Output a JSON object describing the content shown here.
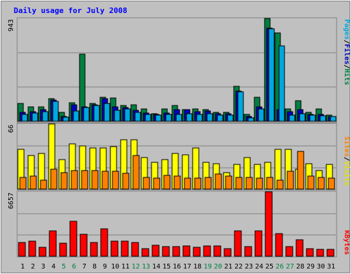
{
  "chart_data": [
    {
      "type": "bar",
      "title": "Daily usage for July 2008",
      "y_max_label": "943",
      "legend": [
        {
          "label": "Pages",
          "color": "#00a8e0"
        },
        {
          "label": "Files",
          "color": "#0000c0"
        },
        {
          "label": "Hits",
          "color": "#008040"
        }
      ],
      "separator": "/",
      "categories": [
        "1",
        "2",
        "3",
        "4",
        "5",
        "6",
        "7",
        "8",
        "9",
        "10",
        "11",
        "12",
        "13",
        "14",
        "15",
        "16",
        "17",
        "18",
        "19",
        "20",
        "21",
        "22",
        "23",
        "24",
        "25",
        "26",
        "27",
        "28",
        "29",
        "30",
        "31"
      ],
      "weekend_days": [
        "5",
        "6",
        "12",
        "13",
        "19",
        "20",
        "26",
        "27"
      ],
      "ylim": [
        0,
        943
      ],
      "series": [
        {
          "name": "Hits",
          "color": "#008040",
          "values": [
            166,
            134,
            134,
            206,
            83,
            170,
            615,
            161,
            219,
            214,
            143,
            148,
            111,
            71,
            114,
            143,
            110,
            111,
            107,
            80,
            80,
            322,
            62,
            219,
            943,
            814,
            111,
            191,
            81,
            116,
            58
          ]
        },
        {
          "name": "Files",
          "color": "#0000c0",
          "values": [
            80,
            90,
            110,
            196,
            47,
            148,
            134,
            152,
            206,
            134,
            125,
            98,
            75,
            65,
            75,
            104,
            104,
            86,
            96,
            72,
            70,
            275,
            45,
            134,
            856,
            107,
            85,
            107,
            65,
            62,
            43
          ]
        },
        {
          "name": "Pages",
          "color": "#00a8e0",
          "values": [
            66,
            78,
            88,
            180,
            40,
            92,
            126,
            144,
            164,
            98,
            112,
            82,
            64,
            56,
            63,
            61,
            70,
            62,
            72,
            54,
            58,
            270,
            32,
            116,
            847,
            690,
            54,
            69,
            56,
            50,
            43
          ]
        }
      ]
    },
    {
      "type": "bar",
      "y_max_label": "66",
      "legend": [
        {
          "label": "Sites",
          "color": "#ff8000"
        },
        {
          "label": "Visits",
          "color": "#ffff00"
        }
      ],
      "separator": "/",
      "ylim": [
        0,
        66
      ],
      "series": [
        {
          "name": "Visits",
          "color": "#ffff00",
          "values": [
            40,
            34,
            36,
            66,
            30,
            46,
            44,
            42,
            42,
            43,
            50,
            50,
            32,
            27,
            30,
            36,
            35,
            42,
            27,
            26,
            17,
            25,
            32,
            25,
            27,
            40,
            40,
            20,
            26,
            19,
            25
          ]
        },
        {
          "name": "Sites",
          "color": "#ff8000",
          "values": [
            12,
            13,
            9,
            20,
            17,
            19,
            19,
            19,
            18,
            18,
            16,
            34,
            12,
            11,
            14,
            13,
            11,
            11,
            12,
            15,
            13,
            12,
            12,
            11,
            12,
            9,
            18,
            38,
            13,
            12,
            11
          ]
        }
      ]
    },
    {
      "type": "bar",
      "y_max_label": "6657",
      "legend": [
        {
          "label": "KBytes",
          "color": "#ff0000"
        }
      ],
      "ylim": [
        0,
        6657
      ],
      "series": [
        {
          "name": "KBytes",
          "color": "#ff0000",
          "values": [
            1417,
            1571,
            930,
            2643,
            1325,
            3596,
            2276,
            1400,
            2831,
            1524,
            1524,
            1429,
            762,
            1132,
            1010,
            1015,
            1034,
            931,
            1029,
            1028,
            795,
            2593,
            979,
            2593,
            6657,
            2308,
            1008,
            1684,
            749,
            691,
            697
          ]
        }
      ]
    }
  ]
}
